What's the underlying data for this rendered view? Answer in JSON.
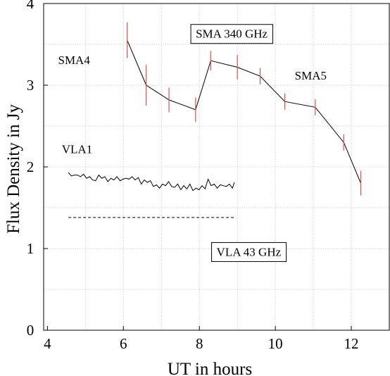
{
  "chart_data": {
    "type": "line",
    "xlabel": "UT in hours",
    "ylabel": "Flux Density in Jy",
    "xlim": [
      3.9,
      13.0
    ],
    "ylim": [
      0,
      4
    ],
    "xticks": [
      "4",
      "6",
      "8",
      "10",
      "12"
    ],
    "yticks": [
      "0",
      "1",
      "2",
      "3",
      "4"
    ],
    "grid": true,
    "grid_style": "dotted",
    "colors": {
      "line": "#000000",
      "errorbar": "#e0504a",
      "grid": "#c8c8c8"
    },
    "boxed_labels": [
      {
        "text": "SMA 340 GHz",
        "x": 8.85,
        "y": 3.58
      },
      {
        "text": "VLA  43 GHz",
        "x": 9.3,
        "y": 0.91
      }
    ],
    "annotations": [
      {
        "text": "SMA4",
        "x": 4.7,
        "y": 3.26
      },
      {
        "text": "SMA5",
        "x": 10.93,
        "y": 3.07
      },
      {
        "text": "VLA1",
        "x": 4.78,
        "y": 2.17
      }
    ],
    "series": [
      {
        "x": [
          6.1,
          6.6,
          7.2,
          7.9,
          8.3,
          9.0,
          9.6,
          10.25,
          11.05,
          11.8,
          12.25
        ],
        "values": [
          3.55,
          3.0,
          2.82,
          2.7,
          3.3,
          3.22,
          3.11,
          2.8,
          2.73,
          2.3,
          1.8
        ],
        "errors": [
          0.22,
          0.25,
          0.15,
          0.15,
          0.12,
          0.15,
          0.1,
          0.1,
          0.1,
          0.1,
          0.15
        ]
      },
      {
        "x": [
          4.55,
          4.63,
          4.71,
          4.79,
          4.87,
          4.95,
          5.03,
          5.11,
          5.19,
          5.27,
          5.35,
          5.43,
          5.51,
          5.59,
          5.67,
          5.75,
          5.83,
          5.91,
          5.99,
          6.07,
          6.15,
          6.23,
          6.31,
          6.39,
          6.47,
          6.55,
          6.63,
          6.71,
          6.79,
          6.87,
          6.95,
          7.03,
          7.11,
          7.19,
          7.27,
          7.35,
          7.43,
          7.51,
          7.59,
          7.67,
          7.75,
          7.83,
          7.91,
          7.99,
          8.07,
          8.15,
          8.23,
          8.31,
          8.39,
          8.47,
          8.55,
          8.63,
          8.71,
          8.79,
          8.87,
          8.92
        ],
        "values": [
          1.93,
          1.89,
          1.9,
          1.9,
          1.88,
          1.91,
          1.86,
          1.88,
          1.84,
          1.83,
          1.9,
          1.86,
          1.88,
          1.82,
          1.86,
          1.84,
          1.88,
          1.83,
          1.85,
          1.86,
          1.85,
          1.88,
          1.84,
          1.87,
          1.79,
          1.84,
          1.81,
          1.83,
          1.76,
          1.78,
          1.74,
          1.79,
          1.77,
          1.82,
          1.76,
          1.75,
          1.79,
          1.72,
          1.77,
          1.73,
          1.79,
          1.71,
          1.74,
          1.72,
          1.77,
          1.73,
          1.85,
          1.77,
          1.79,
          1.74,
          1.78,
          1.77,
          1.76,
          1.79,
          1.74,
          1.81
        ]
      },
      {
        "style": "dashed",
        "x": [
          4.55,
          8.92
        ],
        "values": [
          1.38,
          1.38
        ]
      }
    ]
  }
}
